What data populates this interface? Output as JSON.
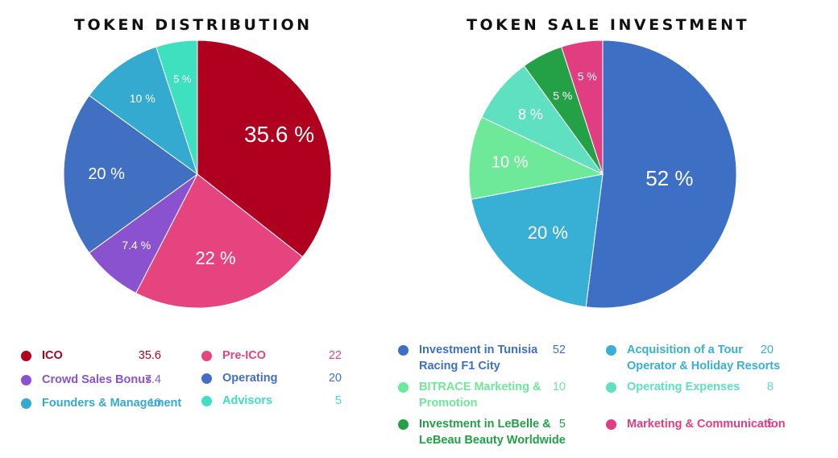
{
  "chart_data": [
    {
      "type": "pie",
      "title": "TOKEN DISTRIBUTION",
      "categories": [
        "ICO",
        "Pre-ICO",
        "Crowd Sales Bonus",
        "Operating",
        "Founders & Management",
        "Advisors"
      ],
      "values": [
        35.6,
        22,
        7.4,
        20,
        10,
        5
      ],
      "slice_labels": [
        "35.6 %",
        "22 %",
        "7.4 %",
        "20 %",
        "10 %",
        "5 %"
      ],
      "legend_values": [
        "35.6",
        "22",
        "7.4",
        "20",
        "10",
        "5"
      ],
      "colors": [
        "#b00020",
        "#e6447f",
        "#8a52cf",
        "#4170c2",
        "#35aad0",
        "#3ee0c0"
      ],
      "legend": "bottom"
    },
    {
      "type": "pie",
      "title": "TOKEN SALE INVESTMENT",
      "categories": [
        "Investment in Tunisia Racing F1 City",
        "Acquisition of a Tour Operator & Holiday Resorts",
        "BITRACE Marketing & Promotion",
        "Operating Expenses",
        "Investment in LeBelle & LeBeau Beauty Worldwide",
        "Marketing & Communication"
      ],
      "values": [
        52,
        20,
        10,
        8,
        5,
        5
      ],
      "slice_labels": [
        "52 %",
        "20 %",
        "10 %",
        "8 %",
        "5 %",
        "5 %"
      ],
      "legend_values": [
        "52",
        "20",
        "10",
        "8",
        "5",
        "5"
      ],
      "colors": [
        "#3d6fc4",
        "#38afd4",
        "#6ee99a",
        "#5fe0c0",
        "#24a046",
        "#e03e80"
      ],
      "legend": "bottom"
    }
  ]
}
